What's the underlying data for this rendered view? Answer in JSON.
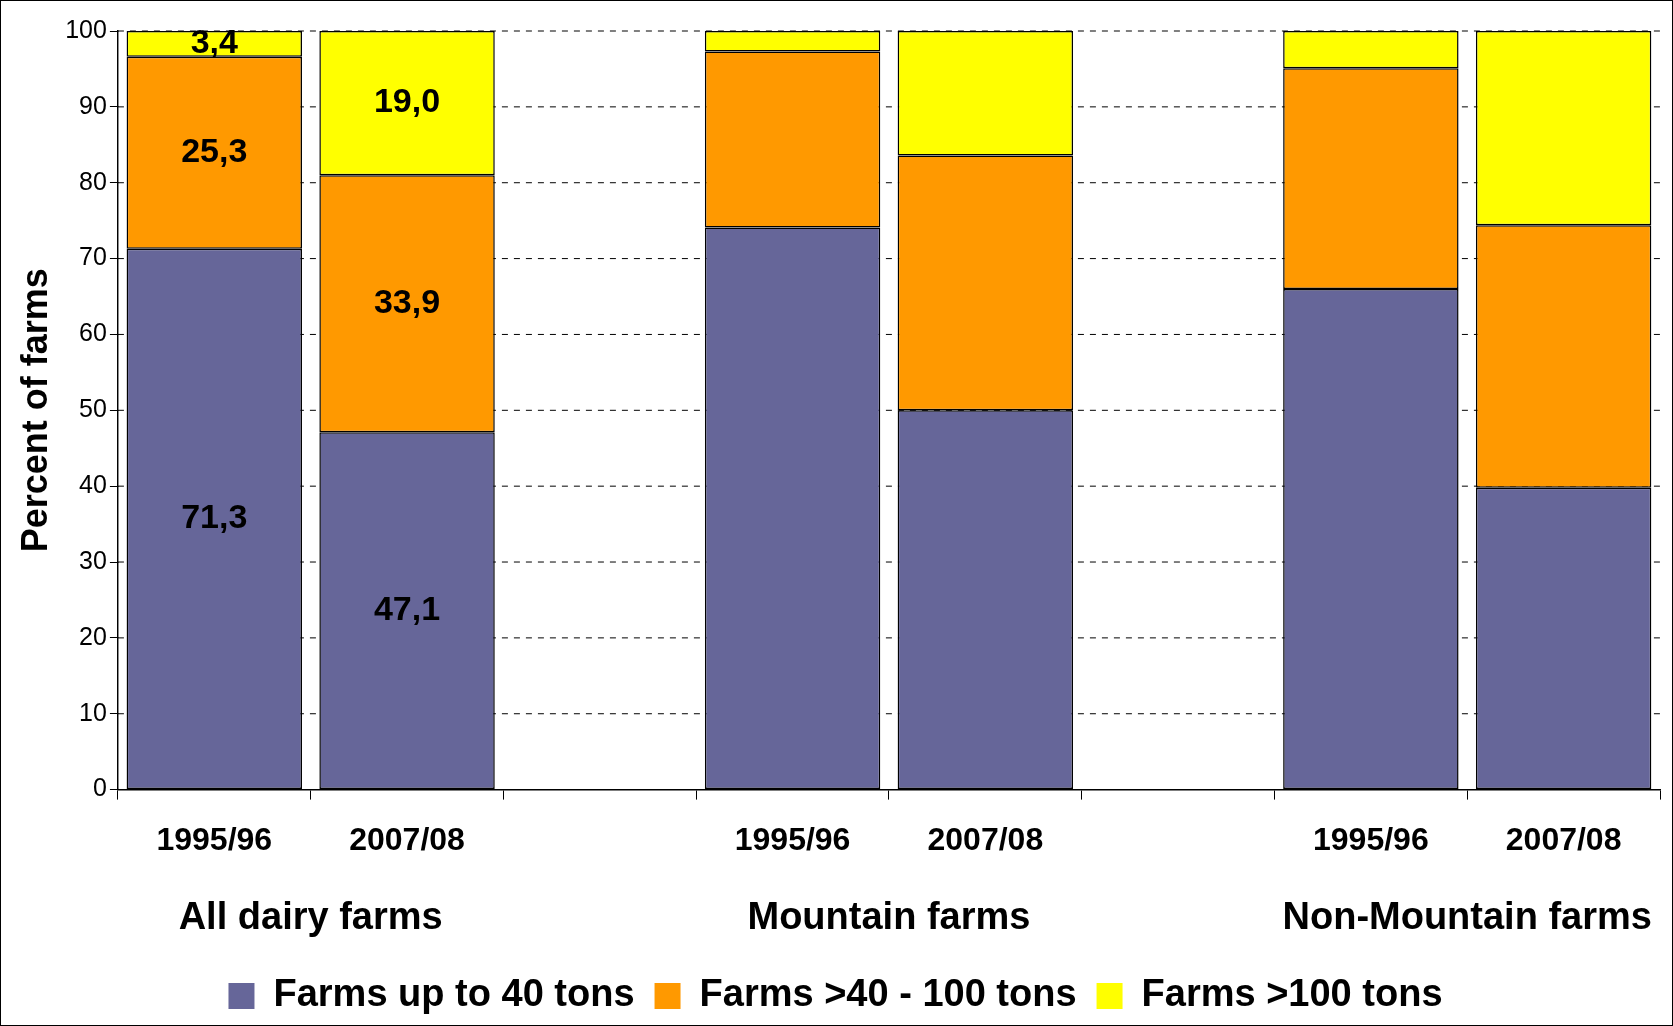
{
  "chart_data": {
    "type": "bar",
    "stacked": true,
    "ylabel": "Percent of farms",
    "categories": [
      "1995/96",
      "2007/08",
      null,
      "1995/96",
      "2007/08",
      null,
      "1995/96",
      "2007/08"
    ],
    "series": [
      {
        "name": "Farms up to 40 tons",
        "color": "#666699",
        "values": [
          71.3,
          47.1,
          null,
          74.1,
          50.0,
          null,
          66.0,
          39.8
        ],
        "value_labels": [
          "71,3",
          "47,1",
          null,
          null,
          null,
          null,
          null,
          null
        ]
      },
      {
        "name": "Farms >40 - 100 tons",
        "color": "#ff9900",
        "values": [
          25.3,
          33.9,
          null,
          23.2,
          33.6,
          null,
          29.1,
          34.6
        ],
        "value_labels": [
          "25,3",
          "33,9",
          null,
          null,
          null,
          null,
          null,
          null
        ]
      },
      {
        "name": "Farms >100 tons",
        "color": "#ffff00",
        "values": [
          3.4,
          19.0,
          null,
          2.7,
          16.4,
          null,
          4.9,
          25.6
        ],
        "value_labels": [
          "3,4",
          "19,0",
          null,
          null,
          null,
          null,
          null,
          null
        ]
      }
    ],
    "annotations": [
      "All dairy farms",
      "Mountain farms",
      "Non-Mountain farms"
    ],
    "ylim": [
      0,
      100
    ],
    "yticks": [
      0,
      10,
      20,
      30,
      40,
      50,
      60,
      70,
      80,
      90,
      100
    ],
    "grid": "y",
    "legend": "bottom"
  }
}
